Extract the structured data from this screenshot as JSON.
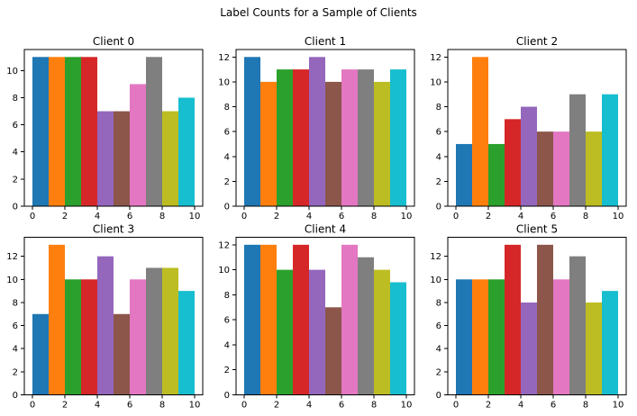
{
  "title": "Label Counts for a Sample of Clients",
  "palette": [
    "#1f77b4",
    "#ff7f0e",
    "#2ca02c",
    "#d62728",
    "#9467bd",
    "#8c564b",
    "#e377c2",
    "#7f7f7f",
    "#bcbd22",
    "#17becf"
  ],
  "chart_data": [
    {
      "type": "bar",
      "title": "Client 0",
      "categories": [
        0,
        1,
        2,
        3,
        4,
        5,
        6,
        7,
        8,
        9
      ],
      "values": [
        11,
        11,
        11,
        11,
        7,
        7,
        9,
        11,
        7,
        8
      ],
      "bar_align": "edge",
      "bar_width": 1,
      "xlim": [
        -0.5,
        10.5
      ],
      "ylim": [
        0,
        11.55
      ],
      "xticks": [
        0,
        2,
        4,
        6,
        8,
        10
      ],
      "yticks": [
        0,
        2,
        4,
        6,
        8,
        10
      ],
      "grid": false,
      "legend": null
    },
    {
      "type": "bar",
      "title": "Client 1",
      "categories": [
        0,
        1,
        2,
        3,
        4,
        5,
        6,
        7,
        8,
        9
      ],
      "values": [
        12,
        10,
        11,
        11,
        12,
        10,
        11,
        11,
        10,
        11
      ],
      "bar_align": "edge",
      "bar_width": 1,
      "xlim": [
        -0.5,
        10.5
      ],
      "ylim": [
        0,
        12.6
      ],
      "xticks": [
        0,
        2,
        4,
        6,
        8,
        10
      ],
      "yticks": [
        0,
        2,
        4,
        6,
        8,
        10,
        12
      ],
      "grid": false,
      "legend": null
    },
    {
      "type": "bar",
      "title": "Client 2",
      "categories": [
        0,
        1,
        2,
        3,
        4,
        5,
        6,
        7,
        8,
        9
      ],
      "values": [
        5,
        12,
        5,
        7,
        8,
        6,
        6,
        9,
        6,
        9
      ],
      "bar_align": "edge",
      "bar_width": 1,
      "xlim": [
        -0.5,
        10.5
      ],
      "ylim": [
        0,
        12.6
      ],
      "xticks": [
        0,
        2,
        4,
        6,
        8,
        10
      ],
      "yticks": [
        0,
        2,
        4,
        6,
        8,
        10,
        12
      ],
      "grid": false,
      "legend": null
    },
    {
      "type": "bar",
      "title": "Client 3",
      "categories": [
        0,
        1,
        2,
        3,
        4,
        5,
        6,
        7,
        8,
        9
      ],
      "values": [
        7,
        13,
        10,
        10,
        12,
        7,
        10,
        11,
        11,
        9
      ],
      "bar_align": "edge",
      "bar_width": 1,
      "xlim": [
        -0.5,
        10.5
      ],
      "ylim": [
        0,
        13.65
      ],
      "xticks": [
        0,
        2,
        4,
        6,
        8,
        10
      ],
      "yticks": [
        0,
        2,
        4,
        6,
        8,
        10,
        12
      ],
      "grid": false,
      "legend": null
    },
    {
      "type": "bar",
      "title": "Client 4",
      "categories": [
        0,
        1,
        2,
        3,
        4,
        5,
        6,
        7,
        8,
        9
      ],
      "values": [
        12,
        12,
        10,
        12,
        10,
        7,
        12,
        11,
        10,
        9
      ],
      "bar_align": "edge",
      "bar_width": 1,
      "xlim": [
        -0.5,
        10.5
      ],
      "ylim": [
        0,
        12.6
      ],
      "xticks": [
        0,
        2,
        4,
        6,
        8,
        10
      ],
      "yticks": [
        0,
        2,
        4,
        6,
        8,
        10,
        12
      ],
      "grid": false,
      "legend": null
    },
    {
      "type": "bar",
      "title": "Client 5",
      "categories": [
        0,
        1,
        2,
        3,
        4,
        5,
        6,
        7,
        8,
        9
      ],
      "values": [
        10,
        10,
        10,
        13,
        8,
        13,
        10,
        12,
        8,
        9
      ],
      "bar_align": "edge",
      "bar_width": 1,
      "xlim": [
        -0.5,
        10.5
      ],
      "ylim": [
        0,
        13.65
      ],
      "xticks": [
        0,
        2,
        4,
        6,
        8,
        10
      ],
      "yticks": [
        0,
        2,
        4,
        6,
        8,
        10,
        12
      ],
      "grid": false,
      "legend": null
    }
  ]
}
